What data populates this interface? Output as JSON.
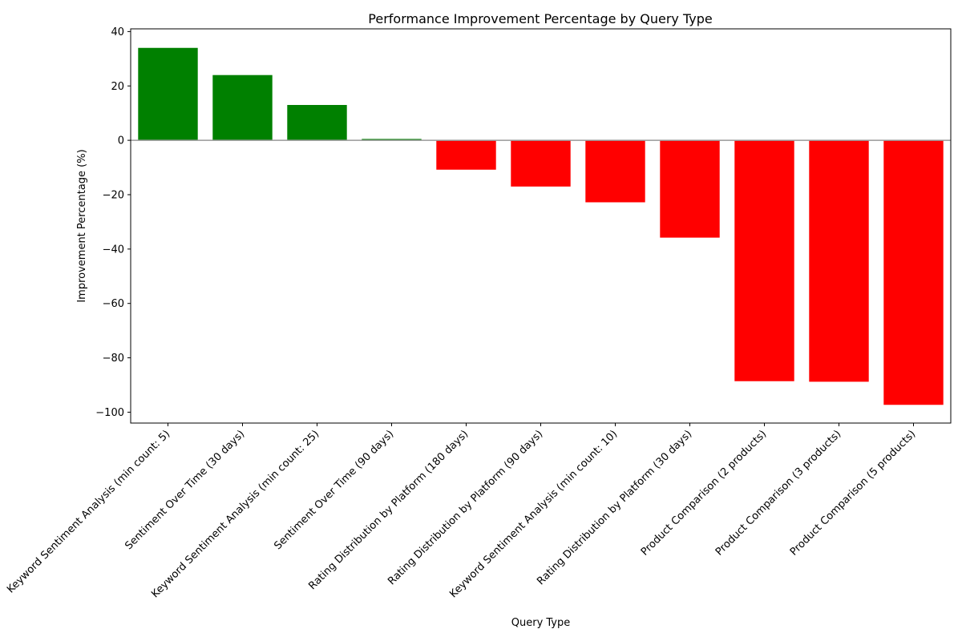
{
  "chart_data": {
    "type": "bar",
    "title": "Performance Improvement Percentage by Query Type",
    "xlabel": "Query Type",
    "ylabel": "Improvement Percentage (%)",
    "categories": [
      "Keyword Sentiment Analysis (min count: 5)",
      "Sentiment Over Time (30 days)",
      "Keyword Sentiment Analysis (min count: 25)",
      "Sentiment Over Time (90 days)",
      "Rating Distribution by Platform (180 days)",
      "Rating Distribution by Platform (90 days)",
      "Keyword Sentiment Analysis (min count: 10)",
      "Rating Distribution by Platform (30 days)",
      "Product Comparison (2 products)",
      "Product Comparison (3 products)",
      "Product Comparison (5 products)"
    ],
    "values": [
      34,
      24,
      13,
      0.5,
      -10.8,
      -17,
      -22.8,
      -35.8,
      -88.6,
      -88.8,
      -97.3
    ],
    "ylim": [
      -104,
      41
    ],
    "yticks": [
      40,
      20,
      0,
      -20,
      -40,
      -60,
      -80,
      -100
    ],
    "positive_color": "#008000",
    "negative_color": "#ff0000",
    "zero_line_color": "#999999",
    "grid": false,
    "legend": false
  }
}
